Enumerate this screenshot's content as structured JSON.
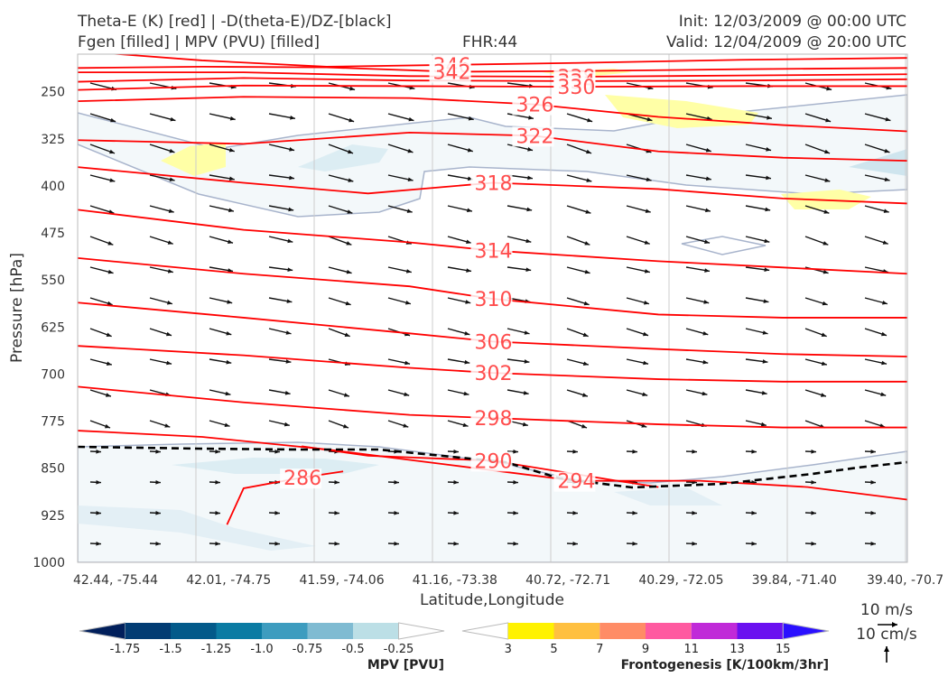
{
  "header": {
    "title_line1": "Theta-E (K) [red] | -D(theta-E)/DZ-[black]",
    "title_line2": "Fgen [filled] | MPV (PVU) [filled]",
    "fhr": "FHR:44",
    "init": "Init: 12/03/2009 @ 00:00 UTC",
    "valid": "Valid: 12/04/2009 @ 20:00 UTC"
  },
  "chart_data": {
    "type": "cross-section",
    "ylabel": "Pressure [hPa]",
    "xlabel": "Latitude,Longitude",
    "y_ticks": [
      "250",
      "325",
      "400",
      "475",
      "550",
      "625",
      "700",
      "775",
      "850",
      "925",
      "1000"
    ],
    "x_ticks": [
      "42.44, -75.44",
      "42.01, -74.75",
      "41.59, -74.06",
      "41.16, -73.38",
      "40.72, -72.71",
      "40.29, -72.05",
      "39.84, -71.40",
      "39.40, -70.7"
    ],
    "ylim": [
      1000,
      190
    ],
    "theta_e_contours": [
      {
        "label": "346",
        "points": [
          [
            0,
            185
          ],
          [
            0.15,
            200
          ],
          [
            0.3,
            210
          ],
          [
            0.45,
            207
          ],
          [
            0.6,
            204
          ],
          [
            0.8,
            199
          ],
          [
            1,
            196
          ]
        ]
      },
      {
        "label": "342",
        "points": [
          [
            0,
            212
          ],
          [
            0.15,
            210
          ],
          [
            0.3,
            211
          ],
          [
            0.45,
            218
          ],
          [
            0.6,
            217
          ],
          [
            0.8,
            214
          ],
          [
            1,
            212
          ]
        ]
      },
      {
        "label": "338",
        "points": [
          [
            0,
            219
          ],
          [
            0.2,
            219
          ],
          [
            0.4,
            225
          ],
          [
            0.6,
            226
          ],
          [
            0.8,
            224
          ],
          [
            1,
            222
          ]
        ]
      },
      {
        "label": "334",
        "points": [
          [
            0,
            234
          ],
          [
            0.2,
            228
          ],
          [
            0.4,
            232
          ],
          [
            0.6,
            233
          ],
          [
            0.8,
            232
          ],
          [
            1,
            230
          ]
        ]
      },
      {
        "label": "330",
        "points": [
          [
            0,
            247
          ],
          [
            0.2,
            240
          ],
          [
            0.4,
            241
          ],
          [
            0.6,
            242
          ],
          [
            0.8,
            241
          ],
          [
            1,
            241
          ]
        ]
      },
      {
        "label": "326",
        "points": [
          [
            0,
            265
          ],
          [
            0.2,
            258
          ],
          [
            0.4,
            260
          ],
          [
            0.55,
            270
          ],
          [
            0.7,
            290
          ],
          [
            0.85,
            303
          ],
          [
            1,
            313
          ]
        ]
      },
      {
        "label": "322",
        "points": [
          [
            0,
            327
          ],
          [
            0.2,
            333
          ],
          [
            0.4,
            315
          ],
          [
            0.55,
            320
          ],
          [
            0.7,
            345
          ],
          [
            0.85,
            355
          ],
          [
            1,
            360
          ]
        ]
      },
      {
        "label": "318",
        "points": [
          [
            0,
            370
          ],
          [
            0.2,
            395
          ],
          [
            0.35,
            412
          ],
          [
            0.5,
            395
          ],
          [
            0.7,
            405
          ],
          [
            0.85,
            420
          ],
          [
            1,
            428
          ]
        ]
      },
      {
        "label": "314",
        "points": [
          [
            0,
            438
          ],
          [
            0.2,
            470
          ],
          [
            0.4,
            490
          ],
          [
            0.5,
            503
          ],
          [
            0.7,
            520
          ],
          [
            0.85,
            530
          ],
          [
            1,
            540
          ]
        ]
      },
      {
        "label": "310",
        "points": [
          [
            0,
            515
          ],
          [
            0.2,
            540
          ],
          [
            0.4,
            560
          ],
          [
            0.5,
            580
          ],
          [
            0.7,
            605
          ],
          [
            0.85,
            610
          ],
          [
            1,
            610
          ]
        ]
      },
      {
        "label": "306",
        "points": [
          [
            0,
            586
          ],
          [
            0.2,
            610
          ],
          [
            0.4,
            635
          ],
          [
            0.5,
            648
          ],
          [
            0.7,
            660
          ],
          [
            0.85,
            668
          ],
          [
            1,
            672
          ]
        ]
      },
      {
        "label": "302",
        "points": [
          [
            0,
            655
          ],
          [
            0.2,
            670
          ],
          [
            0.4,
            690
          ],
          [
            0.5,
            698
          ],
          [
            0.7,
            708
          ],
          [
            0.85,
            712
          ],
          [
            1,
            712
          ]
        ]
      },
      {
        "label": "298",
        "points": [
          [
            0,
            720
          ],
          [
            0.2,
            745
          ],
          [
            0.4,
            765
          ],
          [
            0.5,
            770
          ],
          [
            0.7,
            780
          ],
          [
            0.85,
            785
          ],
          [
            1,
            785
          ]
        ]
      },
      {
        "label": "294",
        "points": [
          [
            0,
            790
          ],
          [
            0.15,
            800
          ],
          [
            0.3,
            820
          ],
          [
            0.45,
            845
          ],
          [
            0.6,
            870
          ],
          [
            0.75,
            870
          ],
          [
            0.88,
            880
          ],
          [
            1,
            900
          ]
        ]
      },
      {
        "label": "290",
        "points": [
          [
            0.27,
            815
          ],
          [
            0.35,
            830
          ],
          [
            0.5,
            838
          ],
          [
            0.65,
            870
          ],
          [
            0.7,
            880
          ]
        ]
      },
      {
        "label": "286",
        "points": [
          [
            0.18,
            940
          ],
          [
            0.2,
            882
          ],
          [
            0.27,
            865
          ],
          [
            0.32,
            855
          ]
        ]
      }
    ],
    "dthetae_dz_zero_line": {
      "style": "dashed",
      "color": "#000000"
    },
    "mpv_colorbar": {
      "title": "MPV [PVU]",
      "labels": [
        "-1.75",
        "-1.5",
        "-1.25",
        "-1.0",
        "-0.75",
        "-0.5",
        "-0.25"
      ],
      "colors": [
        "#011f5b",
        "#023c73",
        "#035a8a",
        "#0b7ba3",
        "#3d9cbf",
        "#7fbbd2",
        "#bcdfe6",
        "#ffffff"
      ]
    },
    "fgen_colorbar": {
      "title": "Frontogenesis [K/100km/3hr]",
      "labels": [
        "3",
        "5",
        "7",
        "9",
        "11",
        "13",
        "15"
      ],
      "colors": [
        "#ffffff",
        "#fff200",
        "#ffc040",
        "#ff8c66",
        "#ff5aa0",
        "#c02ad8",
        "#6a10f0",
        "#2a10ff"
      ]
    },
    "vector_key": {
      "horizontal": "10 m/s",
      "vertical": "10 cm/s"
    }
  }
}
